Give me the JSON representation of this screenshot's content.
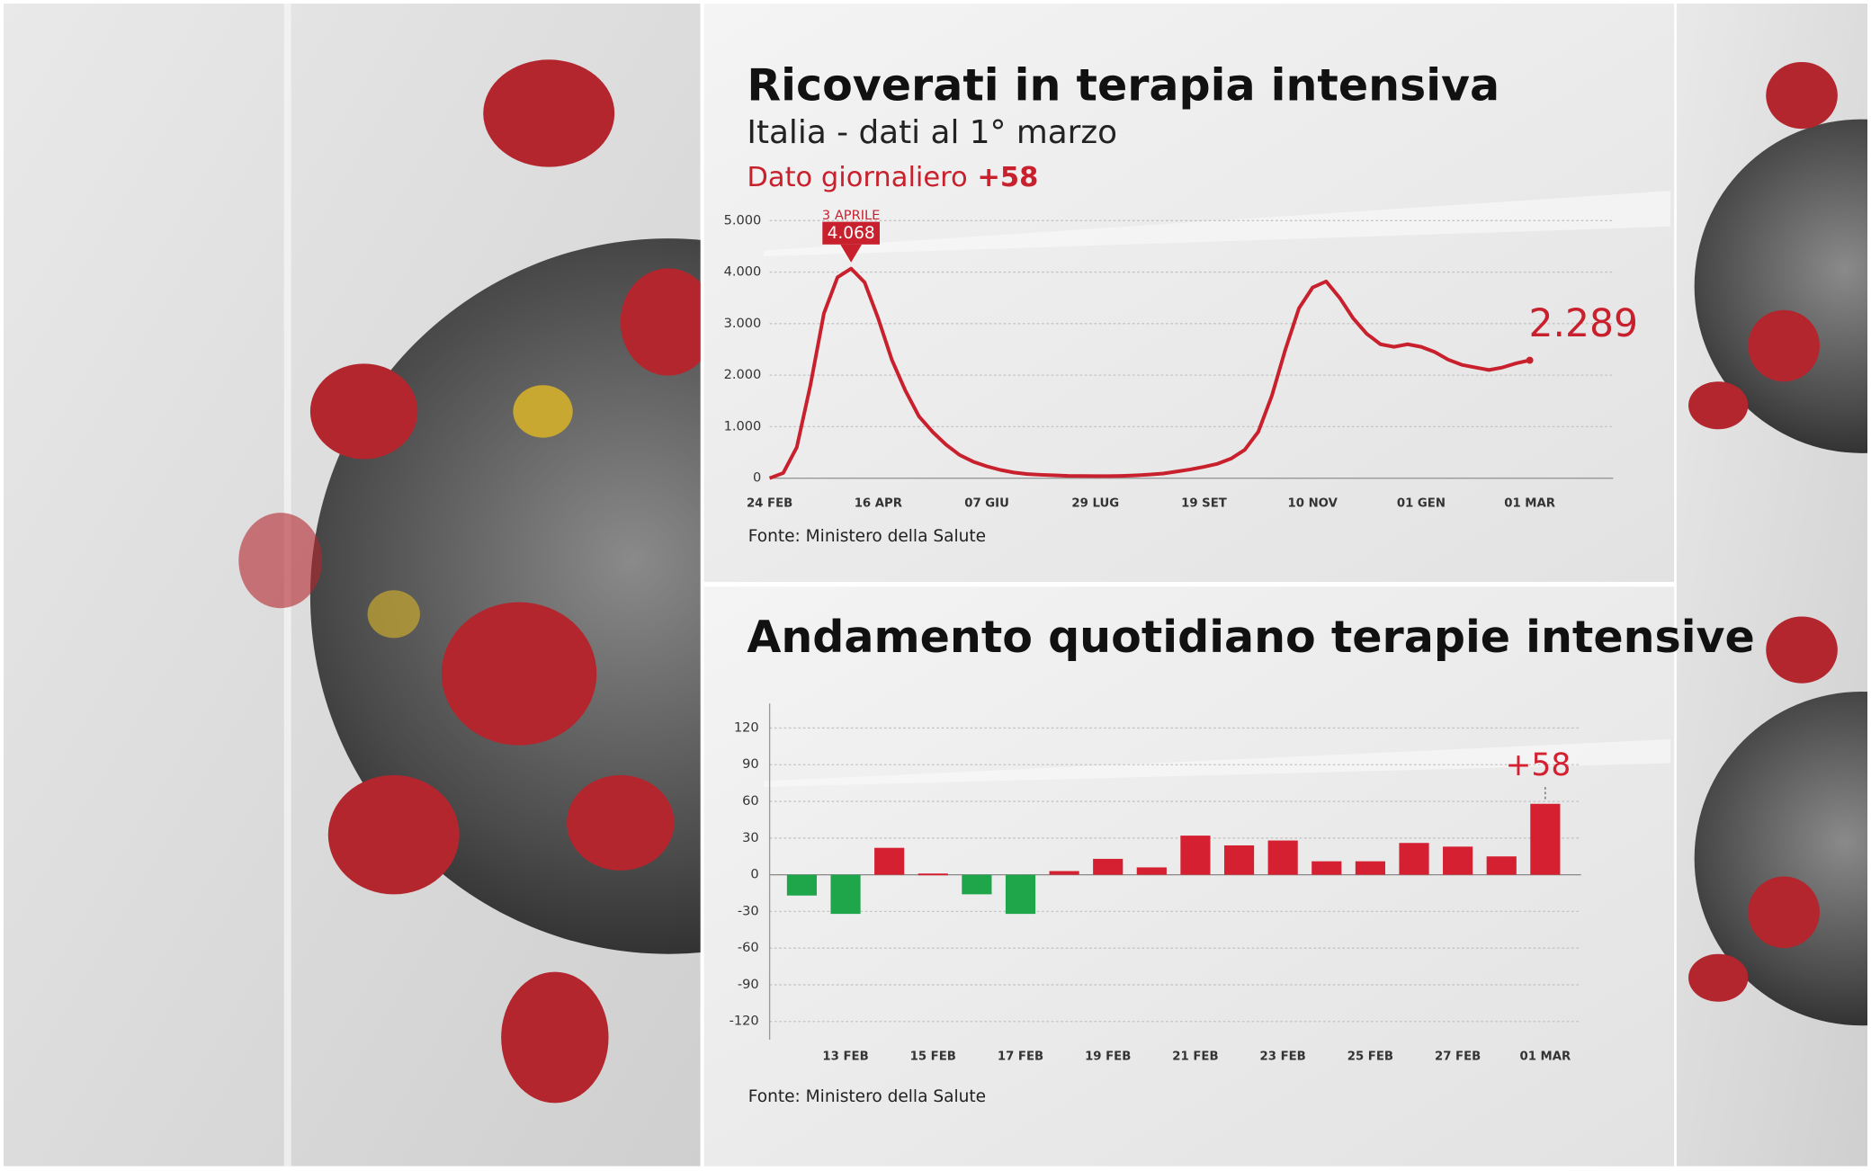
{
  "chart_data": [
    {
      "type": "line",
      "title": "Ricoverati in terapia intensiva",
      "subtitle": "Italia - dati al 1° marzo",
      "daily_label": "Dato giornaliero",
      "daily_value": "+58",
      "peak_date": "3 APRILE",
      "source": "Fonte: Ministero della Salute",
      "color": "#c8202c",
      "grid": true,
      "categories": [
        "24 FEB",
        null,
        null,
        null,
        null,
        null,
        null,
        null,
        "16 APR",
        null,
        null,
        null,
        null,
        null,
        null,
        null,
        "07 GIU",
        null,
        null,
        null,
        null,
        null,
        null,
        null,
        "29 LUG",
        null,
        null,
        null,
        null,
        null,
        null,
        null,
        "19 SET",
        null,
        null,
        null,
        null,
        null,
        null,
        null,
        "10 NOV",
        null,
        null,
        null,
        null,
        null,
        null,
        null,
        "01 GEN",
        null,
        null,
        null,
        null,
        null,
        null,
        null,
        "01 MAR"
      ],
      "values": [
        0,
        100,
        600,
        1800,
        3200,
        3900,
        4068,
        3800,
        3100,
        2300,
        1700,
        1200,
        900,
        650,
        450,
        320,
        230,
        160,
        110,
        80,
        65,
        55,
        45,
        42,
        40,
        40,
        45,
        55,
        70,
        90,
        130,
        170,
        220,
        280,
        380,
        550,
        900,
        1600,
        2500,
        3300,
        3700,
        3820,
        3500,
        3100,
        2800,
        2600,
        2550,
        2600,
        2550,
        2450,
        2300,
        2200,
        2150,
        2100,
        2150,
        2230,
        2289
      ],
      "value_labels": [
        null,
        null,
        null,
        null,
        null,
        null,
        "4.068",
        null,
        null,
        null,
        null,
        null,
        null,
        null,
        null,
        null,
        null,
        null,
        null,
        null,
        null,
        null,
        null,
        null,
        null,
        null,
        null,
        null,
        null,
        null,
        null,
        null,
        null,
        null,
        null,
        null,
        null,
        null,
        null,
        null,
        null,
        null,
        null,
        null,
        null,
        null,
        null,
        null,
        null,
        null,
        null,
        null,
        null,
        null,
        null,
        null,
        "2.289"
      ],
      "ylim": [
        0,
        5000
      ],
      "yticks": [
        0,
        {
          "value": 1000,
          "label": "1.000"
        },
        {
          "value": 2000,
          "label": "2.000"
        },
        {
          "value": 3000,
          "label": "3.000"
        },
        {
          "value": 4000,
          "label": "4.000"
        },
        {
          "value": 5000,
          "label": "5.000"
        }
      ]
    },
    {
      "type": "bar",
      "title": "Andamento quotidiano terapie intensive",
      "source": "Fonte: Ministero della Salute",
      "color": "#d42030",
      "negative_color": "#1fa64a",
      "grid": true,
      "categories": [
        null,
        "13 FEB",
        null,
        "15 FEB",
        null,
        "17 FEB",
        null,
        "19 FEB",
        null,
        "21 FEB",
        null,
        "23 FEB",
        null,
        "25 FEB",
        null,
        "27 FEB",
        null,
        "01 MAR"
      ],
      "values": [
        -17,
        -32,
        22,
        1,
        -16,
        -32,
        3,
        13,
        6,
        32,
        24,
        28,
        11,
        11,
        26,
        23,
        15,
        58
      ],
      "value_labels": [
        null,
        null,
        null,
        null,
        null,
        null,
        null,
        null,
        null,
        null,
        null,
        null,
        null,
        null,
        null,
        null,
        null,
        "+58"
      ],
      "ylim": [
        -135,
        140
      ],
      "yticks": [
        120,
        90,
        60,
        30,
        0,
        -30,
        -60,
        -90,
        -120
      ]
    }
  ]
}
